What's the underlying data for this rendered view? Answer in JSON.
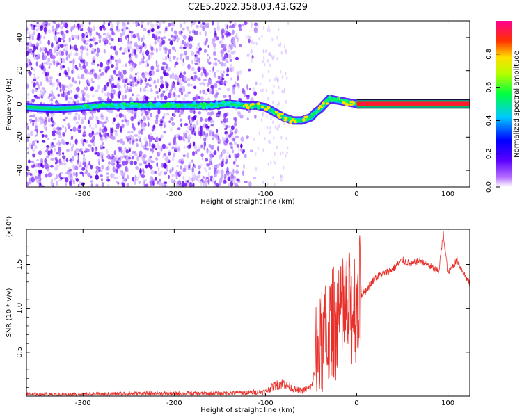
{
  "figure_title": "C2E5.2022.358.03.43.G29",
  "chart_data": [
    {
      "type": "heatmap",
      "xlabel": "Height of straight line (km)",
      "ylabel": "Frequency (Hz)",
      "xlim": [
        -362,
        124
      ],
      "ylim": [
        -50,
        50
      ],
      "xticks": [
        -300,
        -200,
        -100,
        0,
        100
      ],
      "yticks": [
        -40,
        -20,
        0,
        20,
        40
      ],
      "colorbar": {
        "label": "Normalized spectral amplitude",
        "range": [
          0,
          1
        ],
        "ticks": [
          "0.0",
          "0.2",
          "0.4",
          "0.6",
          "0.8"
        ],
        "colormap": [
          "#ffffff",
          "#7b00ff",
          "#0000ff",
          "#00c8ff",
          "#00ff00",
          "#ffff00",
          "#ff0000",
          "#ff0080"
        ]
      },
      "ridge": {
        "x": [
          -362,
          -330,
          -300,
          -280,
          -250,
          -220,
          -200,
          -180,
          -160,
          -140,
          -120,
          -110,
          -100,
          -90,
          -80,
          -70,
          -60,
          -50,
          -45,
          -40,
          -30,
          -20,
          -10,
          0,
          124
        ],
        "y": [
          -2,
          -3,
          -2,
          -1,
          -1,
          -1,
          -1,
          -1,
          -1,
          0,
          -1,
          -1,
          -2,
          -5,
          -8,
          -10,
          -10,
          -8,
          -5,
          -3,
          3,
          2,
          1,
          0,
          0
        ]
      },
      "grid": false
    },
    {
      "type": "line",
      "xlabel": "Height of straight line (km)",
      "ylabel": "SNR (10 * v/v)",
      "scale_label": "(x10⁴)",
      "xlim": [
        -362,
        124
      ],
      "ylim": [
        0,
        1.9
      ],
      "xticks": [
        -300,
        -200,
        -100,
        0,
        100
      ],
      "yticks": [
        0.5,
        1.0,
        1.5
      ],
      "ytick_labels": [
        "0.5",
        "1.0",
        "1.5"
      ],
      "series": [
        {
          "color": "#e8302a",
          "x": [
            -362,
            -300,
            -250,
            -200,
            -150,
            -120,
            -100,
            -90,
            -80,
            -70,
            -60,
            -50,
            -45,
            -40,
            -35,
            -30,
            -25,
            -20,
            -15,
            -10,
            -5,
            0,
            10,
            20,
            30,
            40,
            50,
            60,
            70,
            80,
            90,
            95,
            100,
            110,
            120,
            124
          ],
          "y": [
            0.02,
            0.02,
            0.03,
            0.03,
            0.03,
            0.04,
            0.05,
            0.12,
            0.15,
            0.08,
            0.06,
            0.1,
            0.3,
            0.55,
            0.6,
            0.75,
            0.85,
            0.8,
            0.9,
            0.95,
            1.0,
            1.1,
            1.2,
            1.35,
            1.4,
            1.45,
            1.55,
            1.5,
            1.55,
            1.48,
            1.42,
            1.85,
            1.4,
            1.55,
            1.35,
            1.28
          ]
        }
      ],
      "grid": false
    }
  ]
}
